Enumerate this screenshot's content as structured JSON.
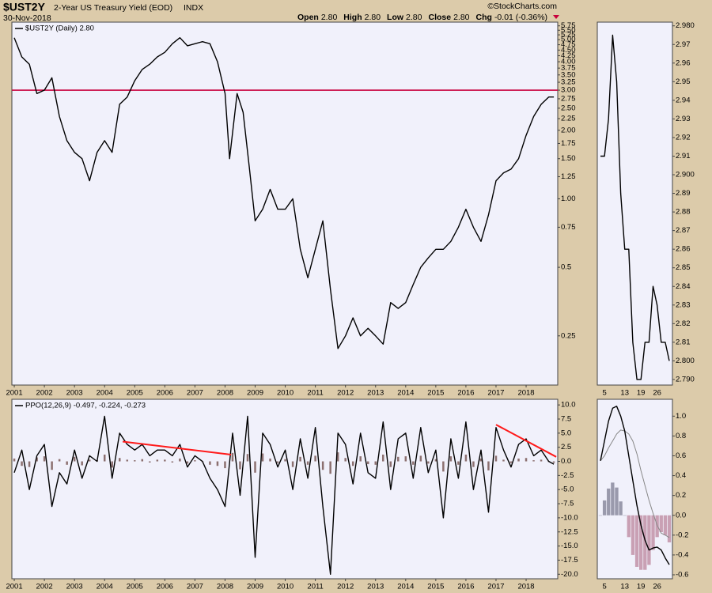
{
  "header": {
    "symbol": "$UST2Y",
    "name": "2-Year US Treasury Yield (EOD)",
    "exchange": "INDX",
    "date": "30-Nov-2018",
    "copyright": "©StockCharts.com",
    "quote": [
      {
        "label": "Open",
        "value": "2.80"
      },
      {
        "label": "High",
        "value": "2.80"
      },
      {
        "label": "Low",
        "value": "2.80"
      },
      {
        "label": "Close",
        "value": "2.80"
      },
      {
        "label": "Chg",
        "value": "-0.01 (-0.36%)"
      }
    ]
  },
  "chart_data": [
    {
      "type": "line",
      "log_scale": true,
      "xlim": [
        2000.92,
        2019.05
      ],
      "ylim": [
        0.152,
        5.97
      ],
      "xticks": [
        2001,
        2002,
        2003,
        2004,
        2005,
        2006,
        2007,
        2008,
        2009,
        2010,
        2011,
        2012,
        2013,
        2014,
        2015,
        2016,
        2017,
        2018
      ],
      "yticks": [
        0.25,
        0.5,
        0.75,
        {
          "value": 1,
          "label": "1.00"
        },
        1.25,
        {
          "value": 1.5,
          "label": "1.50"
        },
        1.75,
        {
          "value": 2,
          "label": "2.00"
        },
        2.25,
        {
          "value": 2.5,
          "label": "2.50"
        },
        2.75,
        {
          "value": 3,
          "label": "3.00"
        },
        3.25,
        {
          "value": 3.5,
          "label": "3.50"
        },
        3.75,
        {
          "value": 4,
          "label": "4.00"
        },
        4.25,
        {
          "value": 4.5,
          "label": "4.50"
        },
        4.75,
        {
          "value": 5,
          "label": "5.00"
        },
        5.25,
        {
          "value": 5.5,
          "label": "5.50"
        },
        5.75
      ],
      "hline": {
        "value": 3,
        "color": "#c8003c"
      },
      "x": [
        2001,
        2001.25,
        2001.5,
        2001.75,
        2002,
        2002.25,
        2002.5,
        2002.75,
        2003,
        2003.25,
        2003.5,
        2003.75,
        2004,
        2004.25,
        2004.5,
        2004.75,
        2005,
        2005.25,
        2005.5,
        2005.75,
        2006,
        2006.25,
        2006.5,
        2006.75,
        2007,
        2007.25,
        2007.5,
        2007.75,
        2008,
        2008.15,
        2008.4,
        2008.6,
        2008.8,
        2009,
        2009.25,
        2009.5,
        2009.75,
        2010,
        2010.25,
        2010.5,
        2010.75,
        2011,
        2011.25,
        2011.5,
        2011.75,
        2012,
        2012.25,
        2012.5,
        2012.75,
        2013,
        2013.25,
        2013.5,
        2013.75,
        2014,
        2014.25,
        2014.5,
        2014.75,
        2015,
        2015.25,
        2015.5,
        2015.75,
        2016,
        2016.25,
        2016.5,
        2016.75,
        2017,
        2017.25,
        2017.5,
        2017.75,
        2018,
        2018.25,
        2018.5,
        2018.75,
        2018.92
      ],
      "series": [
        {
          "name": "$UST2Y (Daily) 2.80",
          "type": "line",
          "color": "#000000",
          "line_width": 1.4,
          "values": [
            5.1,
            4.2,
            3.9,
            2.9,
            3.0,
            3.4,
            2.3,
            1.8,
            1.6,
            1.5,
            1.2,
            1.6,
            1.8,
            1.6,
            2.6,
            2.8,
            3.3,
            3.7,
            3.9,
            4.2,
            4.4,
            4.8,
            5.1,
            4.7,
            4.8,
            4.9,
            4.8,
            4.0,
            2.9,
            1.5,
            2.9,
            2.4,
            1.4,
            0.8,
            0.9,
            1.1,
            0.9,
            0.9,
            1.0,
            0.6,
            0.45,
            0.6,
            0.8,
            0.4,
            0.22,
            0.25,
            0.3,
            0.25,
            0.27,
            0.25,
            0.23,
            0.35,
            0.33,
            0.35,
            0.42,
            0.5,
            0.55,
            0.6,
            0.6,
            0.65,
            0.75,
            0.9,
            0.75,
            0.65,
            0.85,
            1.2,
            1.3,
            1.35,
            1.5,
            1.9,
            2.3,
            2.6,
            2.8,
            2.8
          ]
        }
      ]
    },
    {
      "type": "line",
      "ylim": [
        2.787,
        2.982
      ],
      "yticks": [
        {
          "value": 2.79,
          "label": "2.790"
        },
        {
          "value": 2.8,
          "label": "2.800"
        },
        2.81,
        2.82,
        2.83,
        2.84,
        2.85,
        2.86,
        2.87,
        2.88,
        2.89,
        {
          "value": 2.9,
          "label": "2.900"
        },
        2.91,
        2.92,
        2.93,
        2.94,
        2.95,
        2.96,
        2.97,
        {
          "value": 2.98,
          "label": "2.980"
        }
      ],
      "categories": [
        null,
        "5",
        null,
        null,
        null,
        null,
        "13",
        null,
        null,
        null,
        "19",
        null,
        null,
        null,
        "26",
        null,
        null,
        null
      ],
      "series": [
        {
          "type": "line",
          "color": "#000000",
          "line_width": 1.4,
          "values": [
            2.91,
            2.91,
            2.93,
            2.975,
            2.95,
            2.89,
            2.86,
            2.86,
            2.81,
            2.79,
            2.79,
            2.81,
            2.81,
            2.84,
            2.83,
            2.81,
            2.81,
            2.8
          ]
        }
      ]
    },
    {
      "type": "line",
      "title": "PPO(12,26,9) -0.497, -0.224, -0.273",
      "xlim": [
        2000.92,
        2019.05
      ],
      "ylim": [
        -20.8,
        11.0
      ],
      "xticks": [
        2001,
        2002,
        2003,
        2004,
        2005,
        2006,
        2007,
        2008,
        2009,
        2010,
        2011,
        2012,
        2013,
        2014,
        2015,
        2016,
        2017,
        2018
      ],
      "yticks": [
        {
          "value": -20,
          "label": "-20.0"
        },
        -17.5,
        {
          "value": -15,
          "label": "-15.0"
        },
        -12.5,
        {
          "value": -10,
          "label": "-10.0"
        },
        -7.5,
        {
          "value": -5,
          "label": "-5.0"
        },
        -2.5,
        {
          "value": 0,
          "label": "0.0"
        },
        2.5,
        {
          "value": 5,
          "label": "5.0"
        },
        7.5,
        {
          "value": 10,
          "label": "10.0"
        }
      ],
      "trendlines": [
        {
          "x": [
            2004.6,
            2008.2
          ],
          "y": [
            3.5,
            1.2
          ],
          "color": "#ff1a1a"
        },
        {
          "x": [
            2017.0,
            2019.0
          ],
          "y": [
            6.5,
            0.8
          ],
          "color": "#ff1a1a"
        }
      ],
      "x": [
        2001,
        2001.25,
        2001.5,
        2001.75,
        2002,
        2002.25,
        2002.5,
        2002.75,
        2003,
        2003.25,
        2003.5,
        2003.75,
        2004,
        2004.25,
        2004.5,
        2004.75,
        2005,
        2005.25,
        2005.5,
        2005.75,
        2006,
        2006.25,
        2006.5,
        2006.75,
        2007,
        2007.25,
        2007.5,
        2007.75,
        2008,
        2008.25,
        2008.5,
        2008.75,
        2009,
        2009.25,
        2009.5,
        2009.75,
        2010,
        2010.25,
        2010.5,
        2010.75,
        2011,
        2011.25,
        2011.5,
        2011.75,
        2012,
        2012.25,
        2012.5,
        2012.75,
        2013,
        2013.25,
        2013.5,
        2013.75,
        2014,
        2014.25,
        2014.5,
        2014.75,
        2015,
        2015.25,
        2015.5,
        2015.75,
        2016,
        2016.25,
        2016.5,
        2016.75,
        2017,
        2017.25,
        2017.5,
        2017.75,
        2018,
        2018.25,
        2018.5,
        2018.75,
        2018.92
      ],
      "series": [
        {
          "type": "bar",
          "color": "#8c7070",
          "negative_color": "#8c7070",
          "values": [
            0.5,
            -0.8,
            -1,
            0.7,
            0.9,
            -1.5,
            0.4,
            -0.6,
            0.8,
            -0.7,
            0.3,
            0.2,
            1.2,
            -1.1,
            0.6,
            0.3,
            0.2,
            0.4,
            -0.2,
            0.3,
            0.3,
            -0.2,
            0.5,
            -0.4,
            0.2,
            -0.1,
            -0.6,
            -0.8,
            -1.2,
            1.5,
            -1.4,
            1.3,
            -2,
            1.4,
            0.5,
            -0.3,
            0.4,
            -1,
            0.8,
            -0.6,
            1,
            -1.5,
            -2.2,
            1.6,
            0.6,
            -0.8,
            0.9,
            -0.5,
            -0.6,
            1.2,
            -1,
            0.8,
            0.9,
            -0.6,
            1,
            -0.4,
            0.4,
            -1.8,
            0.9,
            -0.6,
            1.2,
            -1,
            0.5,
            -1.6,
            1,
            0.3,
            -0.3,
            0.5,
            0.6,
            0.2,
            0.3,
            -0.1,
            -0.273
          ]
        },
        {
          "type": "line",
          "color": "#000000",
          "line_width": 1.4,
          "values": [
            -2,
            2,
            -5,
            1,
            3,
            -8,
            -2,
            -4,
            2,
            -3,
            1,
            0,
            8,
            -3,
            5,
            3,
            2,
            3,
            1,
            2,
            2,
            1,
            3,
            -1,
            1,
            0,
            -3,
            -5,
            -8,
            5,
            -6,
            8,
            -17,
            5,
            3,
            -1,
            2,
            -5,
            4,
            -3,
            6,
            -8,
            -20,
            5,
            3,
            -4,
            5,
            -2,
            -3,
            7,
            -5,
            4,
            5,
            -3,
            6,
            -2,
            2,
            -10,
            4,
            -3,
            7,
            -5,
            2,
            -9,
            6,
            2,
            -1,
            3,
            4,
            1,
            2,
            0,
            -0.497
          ]
        }
      ]
    },
    {
      "type": "line",
      "ylim": [
        -0.64,
        1.17
      ],
      "yticks": [
        -0.6,
        -0.4,
        -0.2,
        {
          "value": 0,
          "label": "0.0"
        },
        0.2,
        0.4,
        0.6,
        0.8,
        {
          "value": 1,
          "label": "1.0"
        }
      ],
      "categories": [
        null,
        "5",
        null,
        null,
        null,
        null,
        "13",
        null,
        null,
        null,
        "19",
        null,
        null,
        null,
        "26",
        null,
        null,
        null
      ],
      "series": [
        {
          "type": "bar",
          "color": "#9a9aac",
          "negative_color": "#c9a0b4",
          "values": [
            0,
            0.15,
            0.27,
            0.33,
            0.28,
            0.14,
            0,
            -0.22,
            -0.4,
            -0.52,
            -0.55,
            -0.55,
            -0.5,
            -0.35,
            -0.22,
            -0.17,
            -0.2,
            -0.273
          ]
        },
        {
          "type": "line",
          "color": "#888888",
          "line_width": 1,
          "values": [
            0.55,
            0.6,
            0.68,
            0.75,
            0.82,
            0.86,
            0.85,
            0.82,
            0.75,
            0.62,
            0.45,
            0.3,
            0.15,
            0.02,
            -0.1,
            -0.18,
            -0.2,
            -0.224
          ]
        },
        {
          "type": "line",
          "color": "#000000",
          "line_width": 1.4,
          "values": [
            0.55,
            0.75,
            0.95,
            1.08,
            1.1,
            1.0,
            0.85,
            0.6,
            0.35,
            0.1,
            -0.1,
            -0.25,
            -0.35,
            -0.33,
            -0.32,
            -0.35,
            -0.43,
            -0.497
          ]
        }
      ]
    }
  ]
}
